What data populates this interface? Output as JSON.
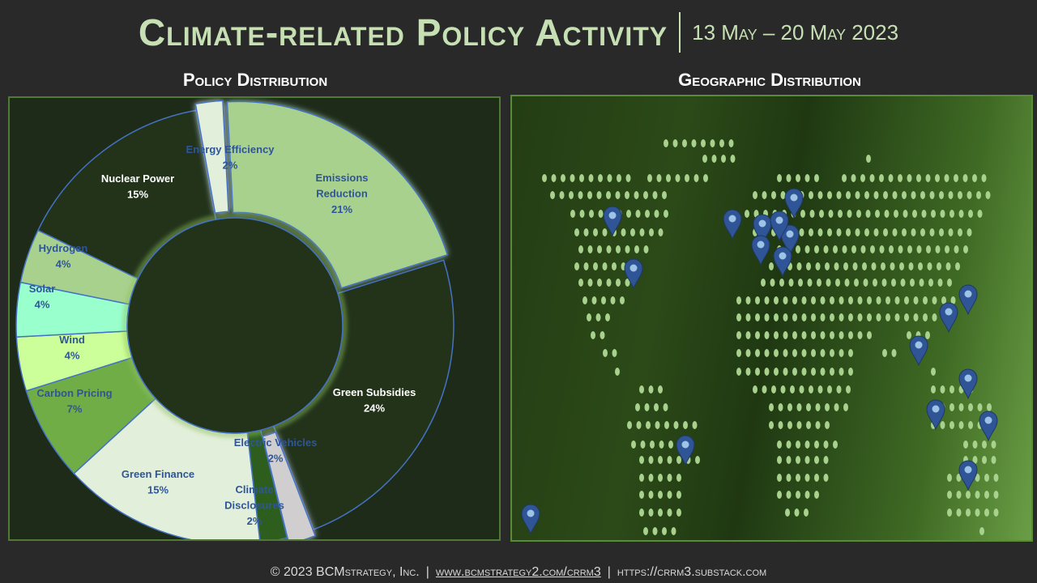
{
  "title": {
    "main": "Climate-related Policy Activity",
    "date": "13 May – 20 May  2023"
  },
  "headings": {
    "policy": "Policy Distribution",
    "geo": "Geographic Distribution"
  },
  "chart_data": {
    "type": "pie",
    "subtype": "donut",
    "title": "Policy Distribution",
    "categories": [
      {
        "name": "Emissions Reduction",
        "label_lines": [
          "Emissions",
          "Reduction"
        ],
        "value": 21,
        "pct": "21%",
        "color": "#a9d18e",
        "text": "#2f5597",
        "exploded": true
      },
      {
        "name": "Green Subsidies",
        "label_lines": [
          "Green Subsidies"
        ],
        "value": 24,
        "pct": "24%",
        "color": "#22331a",
        "text": "#ffffff",
        "exploded": false
      },
      {
        "name": "Electric Vehicles",
        "label_lines": [
          "Electric Vehicles"
        ],
        "value": 2,
        "pct": "2%",
        "color": "#d0cece",
        "text": "#2f5597",
        "exploded": true
      },
      {
        "name": "Climate Disclosures",
        "label_lines": [
          "Climate",
          "Disclosures"
        ],
        "value": 2,
        "pct": "2%",
        "color": "#2d5e1e",
        "text": "#2f5597",
        "exploded": false
      },
      {
        "name": "Green Finance",
        "label_lines": [
          "Green Finance"
        ],
        "value": 15,
        "pct": "15%",
        "color": "#e2efda",
        "text": "#2f5597",
        "exploded": false
      },
      {
        "name": "Carbon Pricing",
        "label_lines": [
          "Carbon Pricing"
        ],
        "value": 7,
        "pct": "7%",
        "color": "#70ad47",
        "text": "#2f5597",
        "exploded": false
      },
      {
        "name": "Wind",
        "label_lines": [
          "Wind"
        ],
        "value": 4,
        "pct": "4%",
        "color": "#ccff99",
        "text": "#2f5597",
        "exploded": false
      },
      {
        "name": "Solar",
        "label_lines": [
          "Solar"
        ],
        "value": 4,
        "pct": "4%",
        "color": "#99ffcc",
        "text": "#2f5597",
        "exploded": false
      },
      {
        "name": "Hydrogen",
        "label_lines": [
          "Hydrogen"
        ],
        "value": 4,
        "pct": "4%",
        "color": "#a9d18e",
        "text": "#2f5597",
        "exploded": false
      },
      {
        "name": "Nuclear Power",
        "label_lines": [
          "Nuclear Power"
        ],
        "value": 15,
        "pct": "15%",
        "color": "#22331a",
        "text": "#ffffff",
        "exploded": false
      },
      {
        "name": "Energy Efficiency",
        "label_lines": [
          "Energy Efficiency"
        ],
        "value": 2,
        "pct": "2%",
        "color": "#e2efda",
        "text": "#2f5597",
        "exploded": true
      }
    ],
    "legend": "none",
    "colors": {
      "outline": "#4472c4",
      "hole": "#22331a"
    }
  },
  "map": {
    "pin_color": "#2f5597",
    "dot_color": "#a9d18e",
    "pin_count": 19
  },
  "footer": {
    "copyright": "© 2023 BCMstrategy, Inc.",
    "link1": "www.bcmstrategy2.com/crrm3",
    "link2": "https://crrm3.substack.com"
  }
}
